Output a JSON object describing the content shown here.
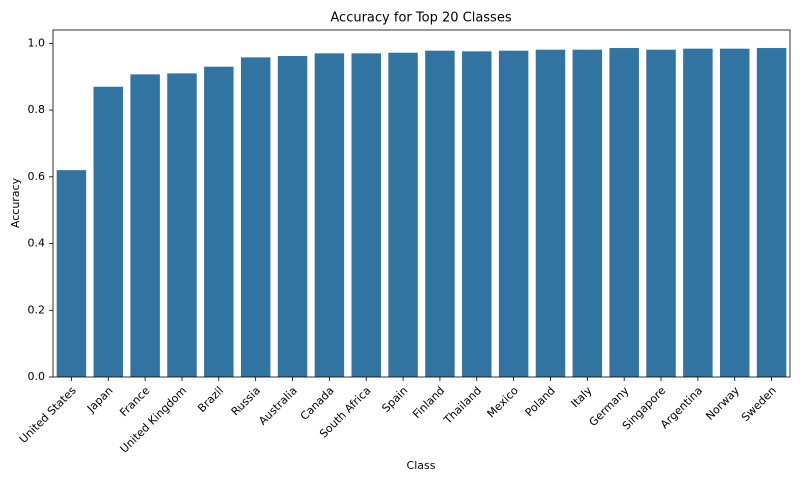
{
  "chart_data": {
    "type": "bar",
    "title": "Accuracy for Top 20 Classes",
    "x_label": "Class",
    "y_label": "Accuracy",
    "categories": [
      "United States",
      "Japan",
      "France",
      "United Kingdom",
      "Brazil",
      "Russia",
      "Australia",
      "Canada",
      "South Africa",
      "Spain",
      "Finland",
      "Thailand",
      "Mexico",
      "Poland",
      "Italy",
      "Germany",
      "Singapore",
      "Argentina",
      "Norway",
      "Sweden"
    ],
    "values": [
      0.62,
      0.87,
      0.907,
      0.91,
      0.93,
      0.958,
      0.962,
      0.97,
      0.97,
      0.972,
      0.978,
      0.976,
      0.978,
      0.981,
      0.981,
      0.986,
      0.981,
      0.984,
      0.984,
      0.986
    ],
    "color": "#3274a1",
    "ylim": [
      0,
      1.04
    ],
    "yticks": [
      {
        "value": 0,
        "label": "0.0"
      },
      0.2,
      0.4,
      0.6,
      0.8,
      {
        "value": 1,
        "label": "1.0"
      }
    ]
  }
}
